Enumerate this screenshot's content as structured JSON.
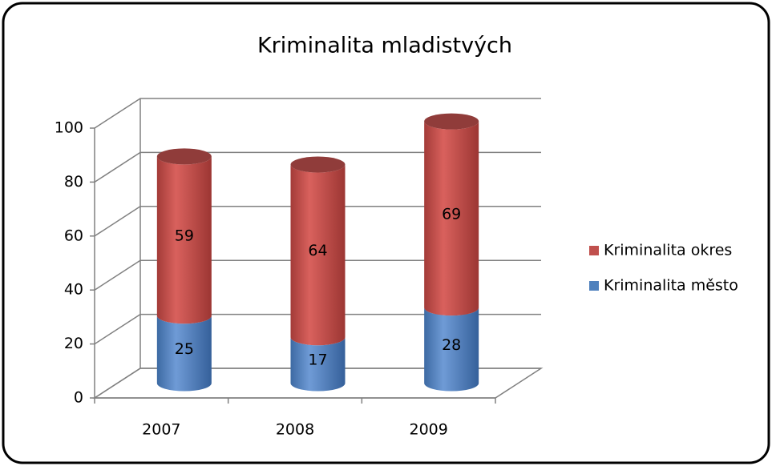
{
  "chart_data": {
    "type": "bar3d_stacked_cylinder",
    "title": "Kriminalita mladistvých",
    "categories": [
      "2007",
      "2008",
      "2009"
    ],
    "series": [
      {
        "name": "Kriminalita město",
        "color": "#4f81bd",
        "values": [
          25,
          17,
          28
        ]
      },
      {
        "name": "Kriminalita okres",
        "color": "#c0504d",
        "values": [
          59,
          64,
          69
        ]
      }
    ],
    "ylim": [
      0,
      100
    ],
    "yticks": [
      0,
      20,
      40,
      60,
      80,
      100
    ],
    "grid": true,
    "legend": "right"
  }
}
